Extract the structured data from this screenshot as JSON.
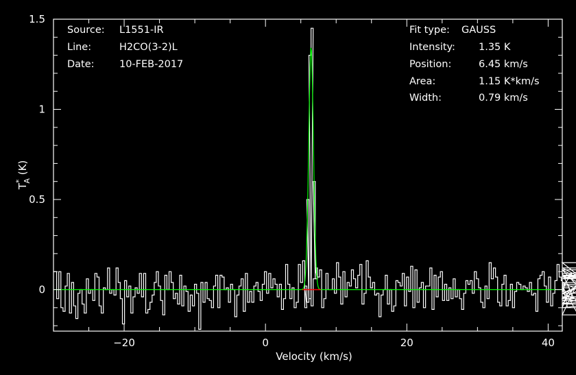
{
  "header_left": {
    "source_label": "Source:",
    "source_value": "L1551-IR",
    "line_label": "Line:",
    "line_value": "H2CO(3-2)L",
    "date_label": "Date:",
    "date_value": "10-FEB-2017"
  },
  "fit_info": {
    "type_label": "Fit type:",
    "type_value": "GAUSS",
    "intensity_label": "Intensity:",
    "intensity_value": "1.35 K",
    "position_label": "Position:",
    "position_value": "6.45 km/s",
    "area_label": "Area:",
    "area_value": "1.15 K*km/s",
    "width_label": "Width:",
    "width_value": "0.79 km/s"
  },
  "colors": {
    "background": "#000000",
    "axes": "#ffffff",
    "spectrum": "#ffffff",
    "fit": "#00ff00",
    "fit_window": "#ff0000"
  },
  "chart_data": {
    "type": "line",
    "xlabel": "Velocity (km/s)",
    "ylabel": "T*A (K)",
    "xlim": [
      -30,
      42
    ],
    "ylim": [
      -0.23,
      1.5
    ],
    "x_ticks": [
      -20,
      0,
      20,
      40
    ],
    "x_tick_labels": [
      "−20",
      "0",
      "20",
      "40"
    ],
    "y_ticks": [
      0,
      0.5,
      1,
      1.5
    ],
    "y_tick_labels": [
      "0",
      "0.5",
      "1",
      "1.5"
    ],
    "grid": false,
    "legend": "none",
    "series": [
      {
        "style": "histogram",
        "channel_width": 0.3,
        "x_start": -30,
        "values": [
          0.1,
          0.1,
          -0.05,
          0.1,
          -0.1,
          -0.12,
          0.02,
          0.09,
          -0.13,
          0.04,
          -0.09,
          -0.16,
          -0.02,
          0.0,
          -0.08,
          -0.13,
          0.06,
          -0.02,
          0.0,
          -0.06,
          0.09,
          0.07,
          -0.09,
          -0.13,
          0.01,
          0.0,
          0.12,
          -0.02,
          0.0,
          -0.03,
          0.12,
          0.04,
          -0.05,
          -0.19,
          0.05,
          -0.04,
          0.02,
          -0.13,
          -0.04,
          0.01,
          -0.02,
          0.09,
          -0.04,
          0.09,
          -0.13,
          -0.11,
          -0.07,
          -0.03,
          0.04,
          0.1,
          0.02,
          -0.06,
          -0.14,
          0.08,
          0.0,
          0.1,
          0.04,
          -0.05,
          -0.02,
          -0.08,
          0.08,
          -0.09,
          0.02,
          -0.01,
          -0.12,
          -0.03,
          -0.09,
          0.03,
          -0.02,
          -0.22,
          0.04,
          -0.07,
          0.04,
          -0.05,
          -0.06,
          -0.1,
          0.02,
          0.08,
          -0.1,
          0.08,
          0.07,
          0.0,
          0.01,
          -0.07,
          0.03,
          0.0,
          -0.15,
          -0.03,
          0.02,
          0.06,
          -0.12,
          0.09,
          -0.07,
          -0.01,
          -0.07,
          0.02,
          0.04,
          -0.01,
          -0.06,
          0.03,
          0.1,
          -0.02,
          0.09,
          0.01,
          0.06,
          0.03,
          -0.04,
          0.03,
          -0.11,
          -0.05,
          0.14,
          0.03,
          -0.05,
          0.01,
          -0.1,
          -0.07,
          0.14,
          0.04,
          0.16,
          -0.1,
          -0.07,
          -0.05,
          -0.09,
          0.06,
          0.06,
          0.07,
          0.11,
          -0.1,
          -0.05,
          0.09,
          0.0,
          0.0,
          0.06,
          -0.02,
          0.15,
          0.07,
          -0.08,
          0.1,
          -0.04,
          0.04,
          0.02,
          0.11,
          0.06,
          0.01,
          0.08,
          0.14,
          -0.08,
          -0.02,
          0.16,
          0.07,
          0.01,
          0.04,
          -0.03,
          -0.02,
          -0.15,
          -0.03,
          0.0,
          0.08,
          -0.08,
          0.0,
          -0.12,
          -0.09,
          0.05,
          0.04,
          0.02,
          0.09,
          -0.09,
          0.07,
          -0.01,
          0.13,
          -0.1,
          0.11,
          -0.07,
          0.01,
          0.04,
          -0.1,
          0.02,
          0.02,
          0.12,
          -0.11,
          0.08,
          -0.04,
          0.07,
          0.1,
          -0.06,
          0.03,
          -0.06,
          0.01,
          -0.05,
          0.06,
          -0.04,
          0.0,
          -0.05,
          -0.11,
          -0.02,
          0.05,
          0.03,
          0.05,
          -0.02,
          0.1,
          0.06,
          0.01,
          -0.07,
          -0.1,
          0.02,
          -0.05,
          0.15,
          0.06,
          0.12,
          0.07,
          -0.07,
          -0.09,
          0.03,
          0.08,
          -0.09,
          -0.06,
          0.03,
          -0.1,
          -0.01,
          0.04,
          0.03,
          0.0,
          0.02,
          0.01,
          -0.01,
          0.04,
          -0.03,
          -0.02,
          -0.12,
          0.06,
          0.08,
          0.1,
          0.02,
          -0.07,
          0.07,
          -0.09,
          -0.02,
          0.05,
          0.14,
          0.07,
          0.05,
          -0.01,
          0.03,
          -0.1,
          0.01,
          0.09,
          -0.05,
          0.02,
          -0.14,
          0.07,
          0.11,
          -0.02,
          -0.08,
          0.12,
          0.04,
          -0.04,
          -0.1,
          -0.08,
          -0.02,
          0.08,
          -0.02,
          0.06,
          0.08,
          0.06,
          0.15,
          -0.08,
          -0.05,
          0.11,
          -0.06,
          -0.06,
          0.03
        ],
        "peak": [
          {
            "x": 5.7,
            "y": 0.02
          },
          {
            "x": 6.0,
            "y": 0.5
          },
          {
            "x": 6.3,
            "y": 1.3
          },
          {
            "x": 6.6,
            "y": 1.45
          },
          {
            "x": 6.9,
            "y": 0.6
          },
          {
            "x": 7.2,
            "y": 0.12
          }
        ]
      },
      {
        "style": "gaussian-fit",
        "amplitude": 1.35,
        "center": 6.45,
        "fwhm": 0.79,
        "window": [
          5.2,
          7.8
        ]
      }
    ]
  }
}
